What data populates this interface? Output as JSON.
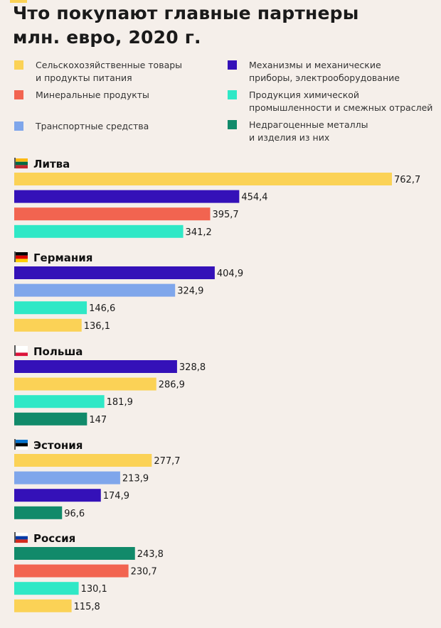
{
  "title_line1": "Что покупают главные партнеры",
  "title_line2": "млн. евро, 2020 г.",
  "legend": [
    {
      "key": "agri",
      "label_line1": "Сельскохозяйственные товары",
      "label_line2": "и продукты питания",
      "color": "#fbd256"
    },
    {
      "key": "mineral",
      "label_line1": "Минеральные продукты",
      "label_line2": "",
      "color": "#f26450"
    },
    {
      "key": "transport",
      "label_line1": "Транспортные средства",
      "label_line2": "",
      "color": "#7fa6eb"
    },
    {
      "key": "machinery",
      "label_line1": "Механизмы и механические",
      "label_line2": "приборы, электрооборудование",
      "color": "#3411b8"
    },
    {
      "key": "chemical",
      "label_line1": "Продукция химической",
      "label_line2": "промышленности и смежных отраслей",
      "color": "#2fe8c6"
    },
    {
      "key": "metals",
      "label_line1": "Недрагоценные металлы",
      "label_line2": "и изделия из них",
      "color": "#118a6a"
    }
  ],
  "chart_data": {
    "type": "bar",
    "orientation": "horizontal",
    "title": "Что покупают главные партнеры",
    "subtitle": "млн. евро, 2020 г.",
    "groups": [
      {
        "country": "Литва",
        "flag": "lithuania",
        "bars": [
          {
            "category": "agri",
            "value": 762.7,
            "label": "762,7"
          },
          {
            "category": "machinery",
            "value": 454.4,
            "label": "454,4"
          },
          {
            "category": "mineral",
            "value": 395.7,
            "label": "395,7"
          },
          {
            "category": "chemical",
            "value": 341.2,
            "label": "341,2"
          }
        ]
      },
      {
        "country": "Германия",
        "flag": "germany",
        "bars": [
          {
            "category": "machinery",
            "value": 404.9,
            "label": "404,9"
          },
          {
            "category": "transport",
            "value": 324.9,
            "label": "324,9"
          },
          {
            "category": "chemical",
            "value": 146.6,
            "label": "146,6"
          },
          {
            "category": "agri",
            "value": 136.1,
            "label": "136,1"
          }
        ]
      },
      {
        "country": "Польша",
        "flag": "poland",
        "bars": [
          {
            "category": "machinery",
            "value": 328.8,
            "label": "328,8"
          },
          {
            "category": "agri",
            "value": 286.9,
            "label": "286,9"
          },
          {
            "category": "chemical",
            "value": 181.9,
            "label": "181,9"
          },
          {
            "category": "metals",
            "value": 147,
            "label": "147"
          }
        ]
      },
      {
        "country": "Эстония",
        "flag": "estonia",
        "bars": [
          {
            "category": "agri",
            "value": 277.7,
            "label": "277,7"
          },
          {
            "category": "transport",
            "value": 213.9,
            "label": "213,9"
          },
          {
            "category": "machinery",
            "value": 174.9,
            "label": "174,9"
          },
          {
            "category": "metals",
            "value": 96.6,
            "label": "96,6"
          }
        ]
      },
      {
        "country": "Россия",
        "flag": "russia",
        "bars": [
          {
            "category": "metals",
            "value": 243.8,
            "label": "243,8"
          },
          {
            "category": "mineral",
            "value": 230.7,
            "label": "230,7"
          },
          {
            "category": "chemical",
            "value": 130.1,
            "label": "130,1"
          },
          {
            "category": "agri",
            "value": 115.8,
            "label": "115,8"
          }
        ]
      }
    ],
    "xlim": [
      0,
      762.7
    ],
    "grid": false,
    "legend_position": "top"
  }
}
